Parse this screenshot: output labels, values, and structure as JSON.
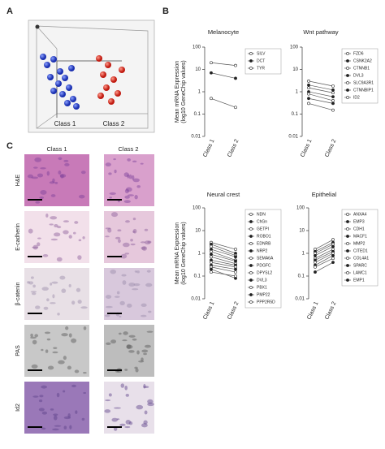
{
  "figure": {
    "panel_a": "A",
    "panel_b": "B",
    "panel_c": "C",
    "scatter_labels": [
      "Class 1",
      "Class 2"
    ],
    "stain_columns": [
      "Class 1",
      "Class 2"
    ],
    "stain_rows": [
      "H&E",
      "E-cadherin",
      "β-catenin",
      "PAS",
      "Id2"
    ]
  },
  "chart_data": [
    {
      "type": "line",
      "title": "Melanocyte",
      "ylabel": [
        "Mean mRNA Expression",
        "(log10 GeneChip values)"
      ],
      "categories": [
        "Class 1",
        "Class 2"
      ],
      "log_scale": true,
      "ylim": [
        0.01,
        100
      ],
      "yticks": [
        0.01,
        0.1,
        1,
        10,
        100
      ],
      "color": "#555555",
      "series": [
        {
          "name": "SILV",
          "values": [
            20,
            15
          ]
        },
        {
          "name": "DCT",
          "values": [
            7,
            4
          ]
        },
        {
          "name": "TYR",
          "values": [
            0.5,
            0.2
          ]
        }
      ]
    },
    {
      "type": "line",
      "title": "Wnt pathway",
      "categories": [
        "Class 1",
        "Class 2"
      ],
      "log_scale": true,
      "ylim": [
        0.01,
        100
      ],
      "yticks": [
        0.01,
        0.1,
        1,
        10,
        100
      ],
      "color": "#555555",
      "series": [
        {
          "name": "FZD6",
          "values": [
            3,
            1.8
          ]
        },
        {
          "name": "CSNK2A2",
          "values": [
            2,
            1.2
          ]
        },
        {
          "name": "CTNNB1",
          "values": [
            1.5,
            0.9
          ]
        },
        {
          "name": "DVL3",
          "values": [
            1,
            0.6
          ]
        },
        {
          "name": "SLC9A3R1",
          "values": [
            0.8,
            0.4
          ]
        },
        {
          "name": "CTNNBIP1",
          "values": [
            0.5,
            0.3
          ]
        },
        {
          "name": "ID2",
          "values": [
            0.3,
            0.15
          ]
        }
      ]
    },
    {
      "type": "line",
      "title": "Neural crest",
      "ylabel": [
        "Mean mRNA Expression",
        "(log10 GeneChip values)"
      ],
      "categories": [
        "Class 1",
        "Class 2"
      ],
      "log_scale": true,
      "ylim": [
        0.01,
        100
      ],
      "yticks": [
        0.01,
        0.1,
        1,
        10,
        100
      ],
      "color": "#555555",
      "series": [
        {
          "name": "NDN",
          "values": [
            3,
            1.5
          ]
        },
        {
          "name": "ChGn",
          "values": [
            2.5,
            1
          ]
        },
        {
          "name": "GETPI",
          "values": [
            2,
            0.8
          ]
        },
        {
          "name": "ROBO1",
          "values": [
            1.5,
            0.7
          ]
        },
        {
          "name": "EDNRB",
          "values": [
            1.2,
            0.5
          ]
        },
        {
          "name": "NRP2",
          "values": [
            0.9,
            0.45
          ]
        },
        {
          "name": "SEMA6A",
          "values": [
            0.7,
            0.35
          ]
        },
        {
          "name": "PDGFC",
          "values": [
            0.5,
            0.3
          ]
        },
        {
          "name": "DPYSL2",
          "values": [
            0.4,
            0.25
          ]
        },
        {
          "name": "DVL3",
          "values": [
            0.3,
            0.2
          ]
        },
        {
          "name": "PBX1",
          "values": [
            0.25,
            0.15
          ]
        },
        {
          "name": "PMP22",
          "values": [
            0.2,
            0.08
          ]
        },
        {
          "name": "PPP2R5D",
          "values": [
            0.15,
            0.1
          ]
        }
      ]
    },
    {
      "type": "line",
      "title": "Epithelial",
      "categories": [
        "Class 1",
        "Class 2"
      ],
      "log_scale": true,
      "ylim": [
        0.01,
        100
      ],
      "yticks": [
        0.01,
        0.1,
        1,
        10,
        100
      ],
      "color": "#555555",
      "series": [
        {
          "name": "ANXA4",
          "values": [
            1.5,
            4
          ]
        },
        {
          "name": "EMP3",
          "values": [
            1.2,
            3
          ]
        },
        {
          "name": "CDH1",
          "values": [
            1,
            2.5
          ]
        },
        {
          "name": "MACF1",
          "values": [
            0.8,
            2
          ]
        },
        {
          "name": "MMP2",
          "values": [
            0.6,
            1.5
          ]
        },
        {
          "name": "CITED1",
          "values": [
            0.5,
            1.2
          ]
        },
        {
          "name": "COL4A1",
          "values": [
            0.4,
            1
          ]
        },
        {
          "name": "SPARC",
          "values": [
            0.3,
            0.8
          ]
        },
        {
          "name": "LAMC1",
          "values": [
            0.25,
            0.6
          ]
        },
        {
          "name": "EMP1",
          "values": [
            0.15,
            0.4
          ]
        }
      ]
    }
  ]
}
